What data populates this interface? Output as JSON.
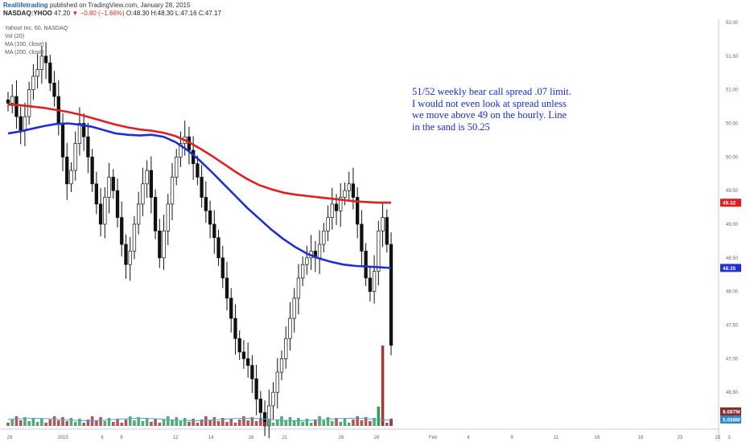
{
  "header": {
    "publisher": "Reallifetrading",
    "published_text": "published on TradingView.com, January 28, 2015",
    "symbol": "NASDAQ:YHOO",
    "last": "47.20",
    "change": "▼ −0.80 (−1.66%)",
    "open": "O:48.30",
    "high": "H:48.30",
    "low": "L:47.16",
    "close": "C:47.17"
  },
  "legend": {
    "title": "Yahoo! Inc, 60, NASDAQ",
    "vol": "Vol (20)",
    "ma100": "MA (100, close)",
    "ma200": "MA (200, close)"
  },
  "annotation": "51/52 weekly bear call spread .07 limit. I would not even look at spread unless we move above 49 on the hourly. Line in the sand is 50.25",
  "colors": {
    "ma100": "#1f2fd0",
    "ma200": "#e02020",
    "up_candle": "#ffffff",
    "down_candle": "#111111",
    "vol_up": "#3a9a5a",
    "vol_down": "#a23a3a"
  },
  "badges": {
    "ma200_value": "49.32",
    "ma100_value": "48.35",
    "vol_value": "8.687M",
    "vol_ma_value": "5.058M"
  },
  "chart_data": {
    "type": "candlestick",
    "ylim": [
      46.0,
      52.0
    ],
    "y_ticks": [
      "52.00",
      "51.50",
      "51.00",
      "50.50",
      "50.00",
      "49.50",
      "49.00",
      "48.50",
      "48.00",
      "47.50",
      "47.00",
      "46.50"
    ],
    "x_ticks": [
      "29",
      "2015",
      "6",
      "8",
      "12",
      "14",
      "16",
      "21",
      "26",
      "28",
      "Feb",
      "4",
      "9",
      "11",
      "16",
      "18",
      "23",
      "25",
      "3"
    ],
    "close_series": [
      50.8,
      50.9,
      50.6,
      50.4,
      50.6,
      51.0,
      51.2,
      51.3,
      51.5,
      51.4,
      51.1,
      50.9,
      50.5,
      50.0,
      49.6,
      49.8,
      50.2,
      50.5,
      50.3,
      50.0,
      49.6,
      49.3,
      49.0,
      49.4,
      49.7,
      49.5,
      49.1,
      48.7,
      48.4,
      48.6,
      49.0,
      49.3,
      49.6,
      49.8,
      49.4,
      48.9,
      48.5,
      48.9,
      49.3,
      49.7,
      50.0,
      50.2,
      50.3,
      50.1,
      49.9,
      49.7,
      49.4,
      49.2,
      49.0,
      48.8,
      48.5,
      48.2,
      47.9,
      47.6,
      47.3,
      47.1,
      47.0,
      46.9,
      46.7,
      46.4,
      46.2,
      46.0,
      46.3,
      46.5,
      46.8,
      47.0,
      47.3,
      47.6,
      47.9,
      48.2,
      48.4,
      48.5,
      48.6,
      48.5,
      48.7,
      48.9,
      49.1,
      49.3,
      49.2,
      49.4,
      49.5,
      49.6,
      49.4,
      49.0,
      48.6,
      48.2,
      48.0,
      48.3,
      48.9,
      49.1,
      48.7,
      47.2
    ],
    "series": [
      {
        "name": "MA (100, close)",
        "values": [
          50.35,
          50.38,
          50.42,
          50.46,
          50.49,
          50.5,
          50.48,
          50.45,
          50.4,
          50.35,
          50.33,
          50.32,
          50.33,
          50.3,
          50.22,
          50.1,
          49.95,
          49.78,
          49.6,
          49.42,
          49.24,
          49.08,
          48.92,
          48.78,
          48.66,
          48.56,
          48.49,
          48.44,
          48.4,
          48.38,
          48.37,
          48.36,
          48.35
        ]
      },
      {
        "name": "MA (200, close)",
        "values": [
          50.78,
          50.77,
          50.75,
          50.73,
          50.7,
          50.67,
          50.63,
          50.58,
          50.53,
          50.48,
          50.44,
          50.41,
          50.39,
          50.36,
          50.31,
          50.23,
          50.13,
          50.02,
          49.9,
          49.78,
          49.67,
          49.58,
          49.52,
          49.47,
          49.44,
          49.42,
          49.4,
          49.38,
          49.36,
          49.34,
          49.33,
          49.32,
          49.32
        ]
      }
    ],
    "volume_spikes_M": [
      8.687,
      2.1
    ],
    "grid": false
  }
}
